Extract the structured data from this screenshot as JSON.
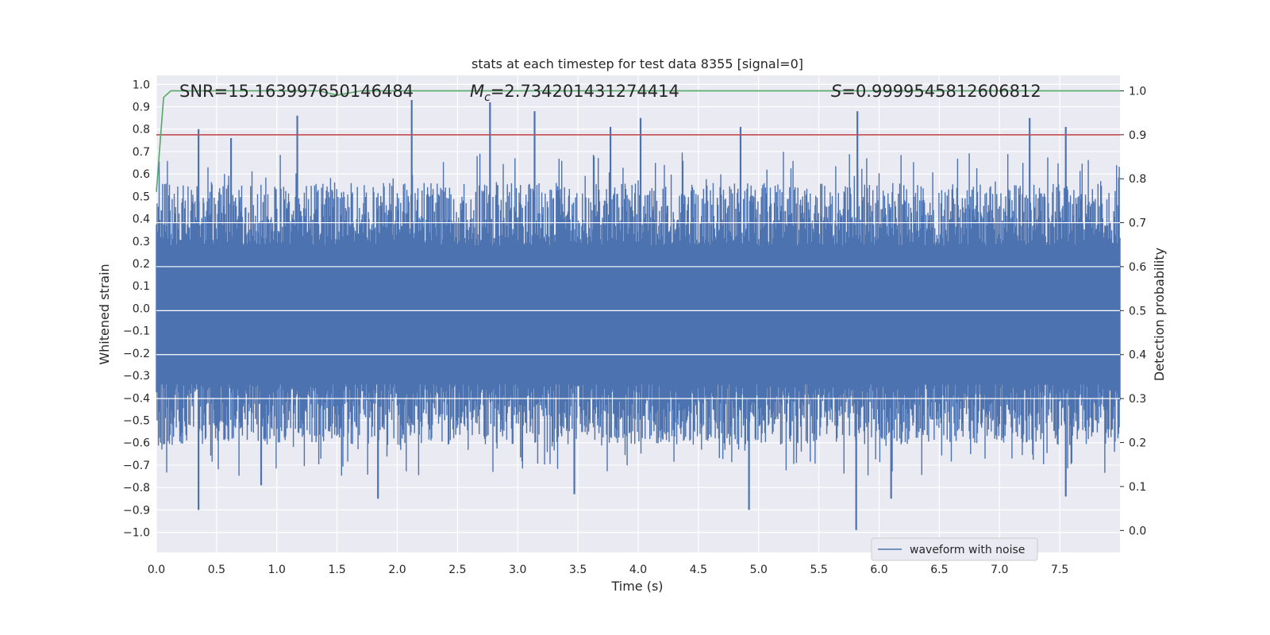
{
  "chart_data": {
    "type": "line",
    "title": "stats at each timestep for test data 8355 [signal=0]",
    "xlabel": "Time (s)",
    "ylabel": "Whitened strain",
    "y2label": "Detection probability",
    "xlim": [
      0.0,
      8.0
    ],
    "ylim": [
      -1.09,
      1.04
    ],
    "y2lim": [
      -0.05,
      1.035
    ],
    "x_ticks": [
      "0.0",
      "0.5",
      "1.0",
      "1.5",
      "2.0",
      "2.5",
      "3.0",
      "3.5",
      "4.0",
      "4.5",
      "5.0",
      "5.5",
      "6.0",
      "6.5",
      "7.0",
      "7.5"
    ],
    "y_ticks": [
      "1.0",
      "0.9",
      "0.8",
      "0.7",
      "0.6",
      "0.5",
      "0.4",
      "0.3",
      "0.2",
      "0.1",
      "0.0",
      "−0.1",
      "−0.2",
      "−0.3",
      "−0.4",
      "−0.5",
      "−0.6",
      "−0.7",
      "−0.8",
      "−0.9",
      "−1.0"
    ],
    "y2_ticks": [
      "1.0",
      "0.9",
      "0.8",
      "0.7",
      "0.6",
      "0.5",
      "0.4",
      "0.3",
      "0.2",
      "0.1",
      "0.0"
    ],
    "grid": true,
    "legend": {
      "placement": "lower-right",
      "entries": [
        "waveform with noise"
      ]
    },
    "annotations": {
      "snr": "SNR=15.163997650146484",
      "mc_symbol": "M",
      "mc_sub": "c",
      "mc_value": "=2.734201431274414",
      "s_symbol": "S",
      "s_value": "=0.9999545812606812"
    },
    "series": [
      {
        "name": "waveform with noise",
        "axis": "left",
        "color": "#4c72b0",
        "x_range": [
          0.0,
          8.0
        ],
        "envelope_level_upper": 0.4,
        "envelope_level_lower": -0.45,
        "peaks": [
          {
            "x": 0.35,
            "y": 0.8
          },
          {
            "x": 0.62,
            "y": 0.76
          },
          {
            "x": 1.17,
            "y": 0.86
          },
          {
            "x": 2.12,
            "y": 0.93
          },
          {
            "x": 2.77,
            "y": 0.92
          },
          {
            "x": 3.14,
            "y": 0.88
          },
          {
            "x": 3.77,
            "y": 0.81
          },
          {
            "x": 4.02,
            "y": 0.85
          },
          {
            "x": 4.85,
            "y": 0.81
          },
          {
            "x": 5.82,
            "y": 0.88
          },
          {
            "x": 7.25,
            "y": 0.85
          },
          {
            "x": 7.55,
            "y": 0.81
          },
          {
            "x": 0.35,
            "y": -0.9
          },
          {
            "x": 0.87,
            "y": -0.79
          },
          {
            "x": 1.84,
            "y": -0.85
          },
          {
            "x": 3.47,
            "y": -0.83
          },
          {
            "x": 4.92,
            "y": -0.9
          },
          {
            "x": 5.81,
            "y": -0.99
          },
          {
            "x": 6.1,
            "y": -0.85
          },
          {
            "x": 7.55,
            "y": -0.84
          }
        ]
      },
      {
        "name": "",
        "axis": "right",
        "color": "#55a868",
        "x": [
          0.0,
          0.06,
          0.12,
          1.35,
          1.5,
          1.7,
          8.0
        ],
        "values": [
          0.77,
          0.985,
          1.0,
          1.0,
          0.99,
          1.0,
          1.0
        ]
      },
      {
        "name": "",
        "axis": "right",
        "color": "#c44e52",
        "x": [
          0.0,
          8.0
        ],
        "values": [
          0.9,
          0.9
        ]
      }
    ]
  }
}
